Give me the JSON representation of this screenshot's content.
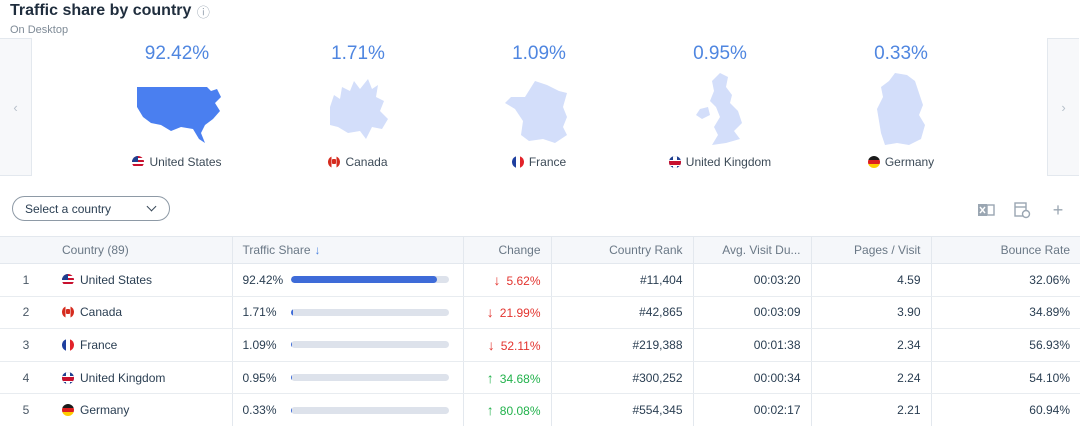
{
  "widget": {
    "title": "Traffic share by country",
    "info_icon": "ⓘ",
    "subtitle": "On Desktop",
    "carousel_prev": "‹",
    "carousel_next": "›"
  },
  "tiles": [
    {
      "share": "92.42%",
      "country": "United States",
      "flag": "flag-us",
      "highlight": "#4a7ff0"
    },
    {
      "share": "1.71%",
      "country": "Canada",
      "flag": "flag-ca",
      "highlight": "#d3defa"
    },
    {
      "share": "1.09%",
      "country": "France",
      "flag": "flag-fr",
      "highlight": "#d3defa"
    },
    {
      "share": "0.95%",
      "country": "United Kingdom",
      "flag": "flag-uk",
      "highlight": "#d3defa"
    },
    {
      "share": "0.33%",
      "country": "Germany",
      "flag": "flag-de",
      "highlight": "#d3defa"
    }
  ],
  "controls": {
    "select_placeholder": "Select a country",
    "tools": [
      "excel-export-icon",
      "settings-table-icon",
      "add-icon"
    ],
    "add_symbol": "+"
  },
  "table": {
    "headers": {
      "country": "Country (89)",
      "traffic_share": "Traffic Share",
      "sort_indicator": "↓",
      "change": "Change",
      "country_rank": "Country Rank",
      "avg_visit": "Avg. Visit Du...",
      "pages_visit": "Pages / Visit",
      "bounce_rate": "Bounce Rate"
    },
    "rows": [
      {
        "idx": "1",
        "country": "United States",
        "flag": "flag-us",
        "share": "92.42%",
        "share_frac": 0.9242,
        "change_dir": "down",
        "change": "5.62%",
        "rank": "#11,404",
        "avg": "00:03:20",
        "pages": "4.59",
        "bounce": "32.06%"
      },
      {
        "idx": "2",
        "country": "Canada",
        "flag": "flag-ca",
        "share": "1.71%",
        "share_frac": 0.0171,
        "change_dir": "down",
        "change": "21.99%",
        "rank": "#42,865",
        "avg": "00:03:09",
        "pages": "3.90",
        "bounce": "34.89%"
      },
      {
        "idx": "3",
        "country": "France",
        "flag": "flag-fr",
        "share": "1.09%",
        "share_frac": 0.0109,
        "change_dir": "down",
        "change": "52.11%",
        "rank": "#219,388",
        "avg": "00:01:38",
        "pages": "2.34",
        "bounce": "56.93%"
      },
      {
        "idx": "4",
        "country": "United Kingdom",
        "flag": "flag-uk",
        "share": "0.95%",
        "share_frac": 0.0095,
        "change_dir": "up",
        "change": "34.68%",
        "rank": "#300,252",
        "avg": "00:00:34",
        "pages": "2.24",
        "bounce": "54.10%"
      },
      {
        "idx": "5",
        "country": "Germany",
        "flag": "flag-de",
        "share": "0.33%",
        "share_frac": 0.0033,
        "change_dir": "up",
        "change": "80.08%",
        "rank": "#554,345",
        "avg": "00:02:17",
        "pages": "2.21",
        "bounce": "60.94%"
      }
    ]
  },
  "colors": {
    "accent": "#4f86e0",
    "bar_fill": "#3e6bd8",
    "bar_track": "#dde2eb",
    "down": "#e3342f",
    "up": "#22b24c"
  }
}
